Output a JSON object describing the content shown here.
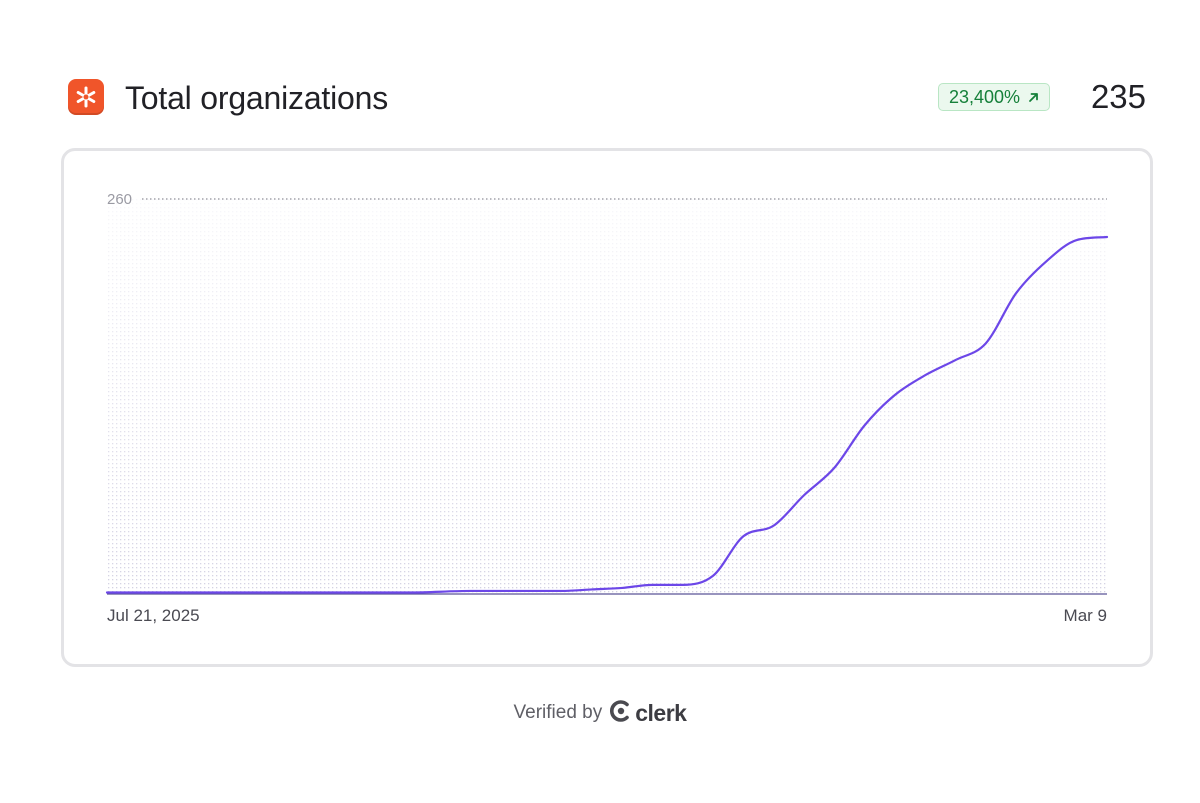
{
  "header": {
    "logo_icon": "asterisk-logo-icon",
    "title": "Total organizations",
    "badge": {
      "text": "23,400%",
      "icon": "arrow-up-right-icon",
      "color": "#16803a",
      "background": "#ebf8ee"
    },
    "total": "235"
  },
  "chart_data": {
    "type": "area",
    "title": "",
    "xlabel": "",
    "ylabel": "",
    "ylim": [
      0,
      260
    ],
    "y_ticks": [
      "260"
    ],
    "x_ticks": [
      "Jul 21, 2025",
      "Mar 9"
    ],
    "x": [
      "2025-07-21",
      "2025-08-04",
      "2025-08-18",
      "2025-09-01",
      "2025-09-15",
      "2025-09-29",
      "2025-10-13",
      "2025-10-27",
      "2025-11-03",
      "2025-11-10",
      "2025-11-17",
      "2025-11-24",
      "2025-12-01",
      "2025-12-08",
      "2025-12-15",
      "2025-12-22",
      "2025-12-29",
      "2026-01-05",
      "2026-01-12",
      "2026-01-19",
      "2026-01-26",
      "2026-02-02",
      "2026-02-09",
      "2026-02-16",
      "2026-02-23",
      "2026-03-02",
      "2026-03-09"
    ],
    "series": [
      {
        "values": [
          1,
          1,
          1,
          1,
          1,
          1,
          2,
          2,
          2,
          3,
          4,
          6,
          6,
          12,
          38,
          45,
          65,
          83,
          111,
          131,
          144,
          154,
          165,
          198,
          219,
          233,
          235
        ],
        "color": "#6c47e8"
      }
    ],
    "grid": false,
    "legend": "none"
  },
  "footer": {
    "verified_text": "Verified by",
    "brand": "clerk",
    "brand_icon": "clerk-logo-icon"
  }
}
